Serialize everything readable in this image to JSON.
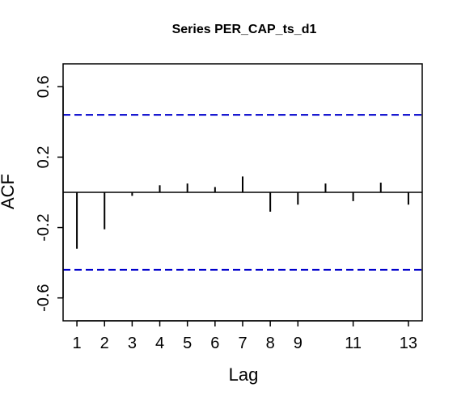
{
  "chart_data": {
    "type": "bar",
    "title": "Series  PER_CAP_ts_d1",
    "xlabel": "Lag",
    "ylabel": "ACF",
    "xlim": [
      0.5,
      13.5
    ],
    "ylim": [
      -0.73,
      0.73
    ],
    "x_ticks": [
      1,
      2,
      3,
      4,
      5,
      6,
      7,
      8,
      9,
      11,
      13
    ],
    "x_tick_labels": [
      "1",
      "2",
      "3",
      "4",
      "5",
      "6",
      "7",
      "8",
      "9",
      "11",
      "13"
    ],
    "y_ticks": [
      -0.6,
      -0.2,
      0.2,
      0.6
    ],
    "y_tick_labels": [
      "-0.6",
      "-0.2",
      "0.2",
      "0.6"
    ],
    "lags": [
      1,
      2,
      3,
      4,
      5,
      6,
      7,
      8,
      9,
      10,
      11,
      12,
      13
    ],
    "values": [
      -0.32,
      -0.21,
      -0.02,
      0.04,
      0.05,
      0.03,
      0.09,
      -0.11,
      -0.07,
      0.05,
      -0.05,
      0.055,
      -0.07
    ],
    "confidence_bound": 0.44,
    "colors": {
      "bars": "#000000",
      "confidence": "#0000cc",
      "zero_line": "#000000"
    },
    "grid": false,
    "legend": "none"
  }
}
